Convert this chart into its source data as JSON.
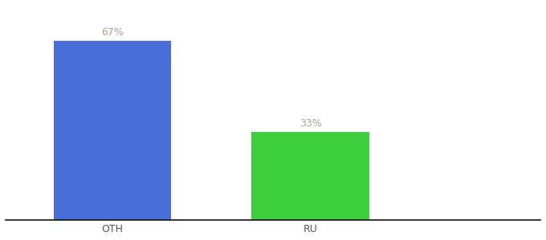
{
  "categories": [
    "OTH",
    "RU"
  ],
  "values": [
    67,
    33
  ],
  "bar_colors": [
    "#4a6fdb",
    "#3ecf3e"
  ],
  "label_texts": [
    "67%",
    "33%"
  ],
  "ylim": [
    0,
    80
  ],
  "figsize": [
    6.8,
    3.0
  ],
  "dpi": 100,
  "label_color": "#aaa090",
  "label_fontsize": 9,
  "tick_fontsize": 9,
  "tick_color": "#555555",
  "background_color": "#ffffff",
  "bar_width": 0.22,
  "x_positions": [
    0.25,
    0.62
  ],
  "xlim": [
    0.05,
    1.05
  ]
}
